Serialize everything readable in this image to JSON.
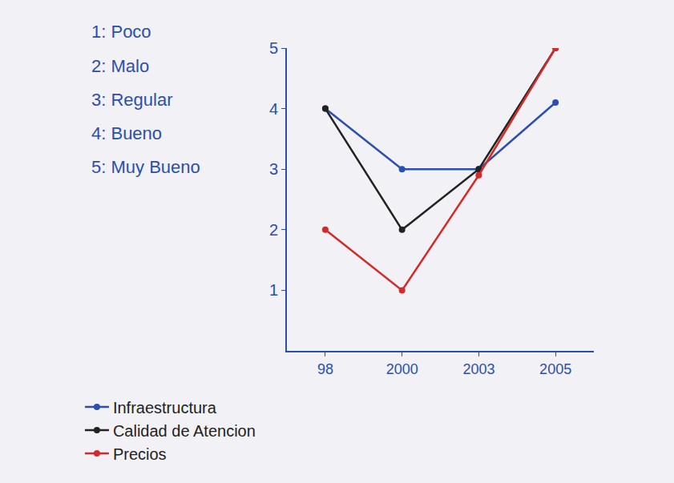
{
  "chart_data": {
    "type": "line",
    "categories": [
      "98",
      "2000",
      "2003",
      "2005"
    ],
    "series": [
      {
        "name": "Infraestructura",
        "color": "#2a4fb0",
        "values": [
          4,
          3,
          3,
          4.1
        ]
      },
      {
        "name": "Calidad de Atencion",
        "color": "#222222",
        "values": [
          4,
          2,
          3,
          5
        ]
      },
      {
        "name": "Precios",
        "color": "#d42a2a",
        "values": [
          2,
          1,
          2.9,
          5
        ]
      }
    ],
    "ylim": [
      0,
      5
    ],
    "yticks": [
      1,
      2,
      3,
      4,
      5
    ],
    "grid": false,
    "marker": "circle",
    "legend": "bottom left",
    "annotations": [
      "1: Poco",
      "2: Malo",
      "3: Regular",
      "4: Bueno",
      "5: Muy Bueno"
    ]
  }
}
